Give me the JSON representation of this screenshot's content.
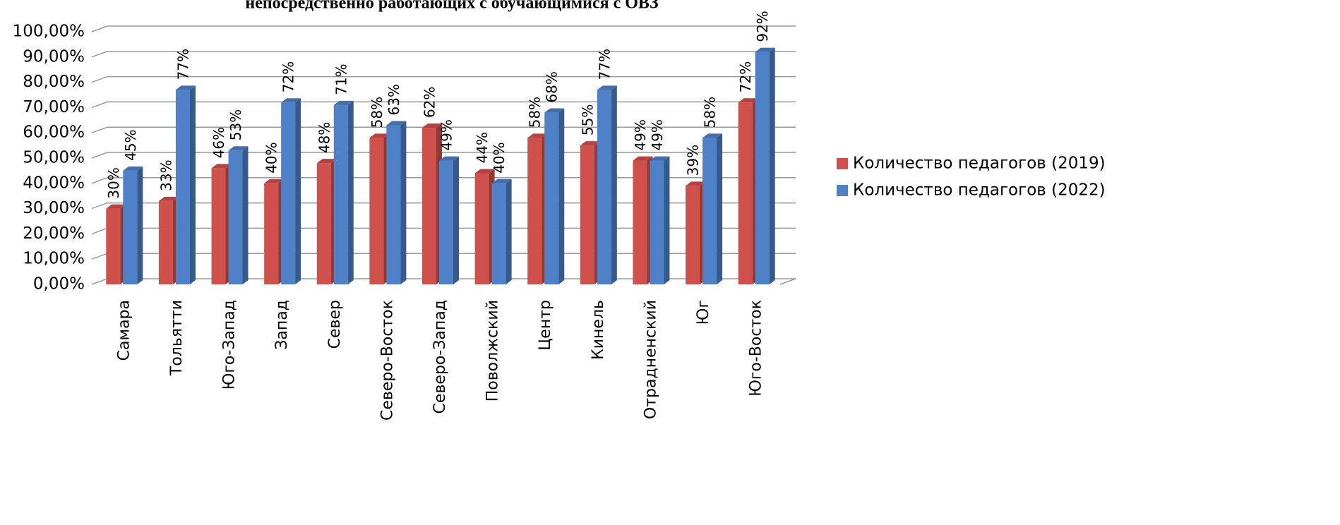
{
  "chart_data": {
    "type": "bar",
    "title": "непосредственно работающих с обучающимися с ОВЗ",
    "categories": [
      "Самара",
      "Тольятти",
      "Юго-Запад",
      "Запад",
      "Север",
      "Северо-Восток",
      "Северо-Запад",
      "Поволжский",
      "Центр",
      "Кинель",
      "Отрадненский",
      "Юг",
      "Юго-Восток"
    ],
    "series": [
      {
        "name": "Количество педагогов (2019)",
        "color": "#d0504c",
        "values": [
          30,
          33,
          46,
          40,
          48,
          58,
          62,
          44,
          58,
          55,
          49,
          39,
          72
        ],
        "value_labels": [
          "30%",
          "33%",
          "46%",
          "40%",
          "48%",
          "58%",
          "62%",
          "44%",
          "58%",
          "55%",
          "49%",
          "39%",
          "72%"
        ]
      },
      {
        "name": "Количество педагогов (2022)",
        "color": "#4f81c8",
        "values": [
          45,
          77,
          53,
          72,
          71,
          63,
          49,
          40,
          68,
          77,
          49,
          58,
          92
        ],
        "value_labels": [
          "45%",
          "77%",
          "53%",
          "72%",
          "71%",
          "63%",
          "49%",
          "40%",
          "68%",
          "77%",
          "49%",
          "58%",
          "92%"
        ]
      }
    ],
    "ylim": [
      0,
      100
    ],
    "yticks": [
      {
        "value": 0,
        "label": "0,00%"
      },
      {
        "value": 10,
        "label": "10,00%"
      },
      {
        "value": 20,
        "label": "20,00%"
      },
      {
        "value": 30,
        "label": "30,00%"
      },
      {
        "value": 40,
        "label": "40,00%"
      },
      {
        "value": 50,
        "label": "50,00%"
      },
      {
        "value": 60,
        "label": "60,00%"
      },
      {
        "value": 70,
        "label": "70,00%"
      },
      {
        "value": 80,
        "label": "80,00%"
      },
      {
        "value": 90,
        "label": "90,00%"
      },
      {
        "value": 100,
        "label": "100,00%"
      }
    ],
    "grid": true,
    "legend": "right"
  }
}
